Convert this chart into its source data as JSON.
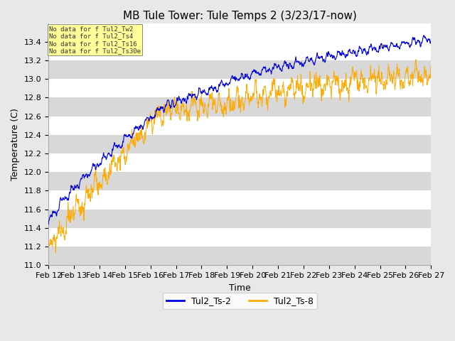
{
  "title": "MB Tule Tower: Tule Temps 2 (3/23/17-now)",
  "xlabel": "Time",
  "ylabel": "Temperature (C)",
  "ylim": [
    11.0,
    13.6
  ],
  "yticks": [
    11.0,
    11.2,
    11.4,
    11.6,
    11.8,
    12.0,
    12.2,
    12.4,
    12.6,
    12.8,
    13.0,
    13.2,
    13.4
  ],
  "xtick_labels": [
    "Feb 12",
    "Feb 13",
    "Feb 14",
    "Feb 15",
    "Feb 16",
    "Feb 17",
    "Feb 18",
    "Feb 19",
    "Feb 20",
    "Feb 21",
    "Feb 22",
    "Feb 23",
    "Feb 24",
    "Feb 25",
    "Feb 26",
    "Feb 27"
  ],
  "series1_color": "#0000dd",
  "series2_color": "#ffaa00",
  "series1_label": "Tul2_Ts-2",
  "series2_label": "Tul2_Ts-8",
  "no_data_lines": [
    "No data for f Tul2_Tw2",
    "No data for f Tul2_Ts4",
    "No data for f Tul2_Ts16",
    "No data for f Tul2_Ts30e"
  ],
  "no_data_bg": "#ffff99",
  "background_color": "#e8e8e8",
  "plot_bg": "#ffffff",
  "band_color": "#d8d8d8",
  "title_fontsize": 11,
  "label_fontsize": 9,
  "tick_fontsize": 8,
  "figsize": [
    6.4,
    4.8
  ],
  "dpi": 100
}
